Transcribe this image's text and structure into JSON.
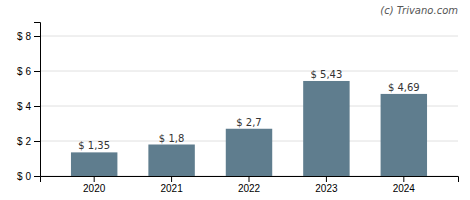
{
  "chart_data": {
    "type": "bar",
    "categories": [
      "2020",
      "2021",
      "2022",
      "2023",
      "2024"
    ],
    "values": [
      1.35,
      1.8,
      2.7,
      5.43,
      4.69
    ],
    "value_labels": [
      "$ 1,35",
      "$ 1,8",
      "$ 2,7",
      "$ 5,43",
      "$ 4,69"
    ],
    "color": "#5f7d8e",
    "ylim": [
      0,
      8.8
    ],
    "yticks": [
      {
        "value": 0,
        "label": "$ 0"
      },
      {
        "value": 2,
        "label": "$ 2"
      },
      {
        "value": 4,
        "label": "$ 4"
      },
      {
        "value": 6,
        "label": "$ 6"
      },
      {
        "value": 8,
        "label": "$ 8"
      }
    ],
    "grid": true,
    "annotations": [
      "(c) Trivano.com"
    ]
  }
}
